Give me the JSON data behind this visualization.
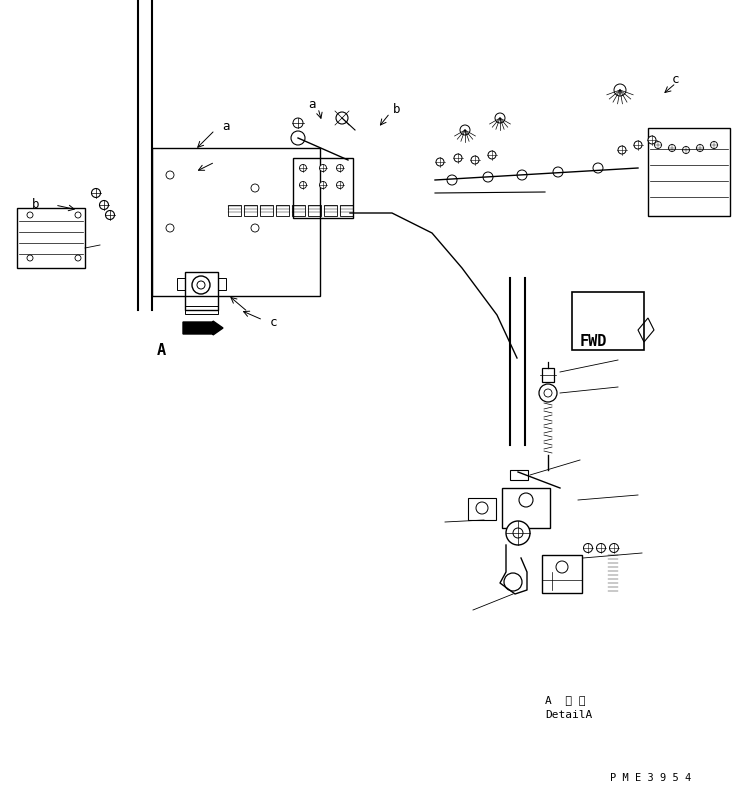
{
  "bg_color": "#ffffff",
  "lc": "#000000",
  "fig_width": 7.42,
  "fig_height": 8.01,
  "dpi": 100,
  "detail_a_jp": "A  詳 細",
  "detail_a_en": "DetailA",
  "part_number": "P M E 3 9 5 4",
  "fwd_label": "FWD"
}
